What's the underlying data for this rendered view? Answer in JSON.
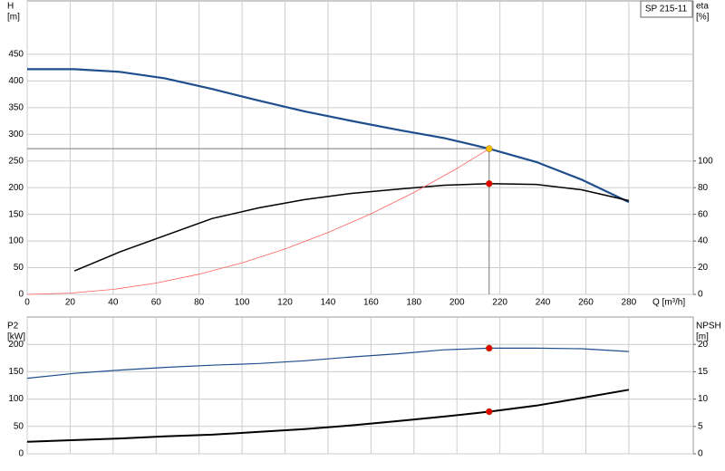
{
  "chart_data": [
    {
      "type": "line",
      "annotation": "SP 215-11",
      "ylabel": "H",
      "yunit": "[m]",
      "y2label": "eta",
      "y2unit": "[%]",
      "xlabel": "Q [m³/h]",
      "xlim": [
        0,
        310
      ],
      "xticks": [
        0,
        20,
        40,
        60,
        80,
        100,
        120,
        140,
        160,
        180,
        200,
        220,
        240,
        260,
        280
      ],
      "ylim": [
        0,
        550
      ],
      "yticks": [
        0,
        50,
        100,
        150,
        200,
        250,
        300,
        350,
        400,
        450
      ],
      "y2lim": [
        0,
        220
      ],
      "y2ticks": [
        0,
        20,
        40,
        60,
        80,
        100
      ],
      "grid": true,
      "series": [
        {
          "color": "#1f4e8c",
          "width": 2.2,
          "x": [
            0,
            22,
            43,
            64,
            86,
            108,
            129,
            151,
            173,
            194,
            215,
            237,
            258,
            280
          ],
          "values": [
            422,
            422,
            417,
            405,
            385,
            363,
            343,
            325,
            308,
            293,
            273,
            248,
            215,
            173
          ]
        },
        {
          "color": "#000000",
          "width": 1.5,
          "axis": "y2",
          "x": [
            22,
            43,
            64,
            86,
            108,
            129,
            151,
            173,
            194,
            215,
            237,
            258,
            280
          ],
          "values": [
            17.6,
            31.8,
            44,
            56.8,
            64.9,
            71,
            75.7,
            79,
            81.8,
            83,
            82.4,
            78.4,
            70.3
          ]
        },
        {
          "color": "#ff6060",
          "width": 0.8,
          "x": [
            0,
            20,
            40,
            60,
            80,
            100,
            120,
            140,
            160,
            180,
            200,
            215
          ],
          "values": [
            0,
            2.4,
            9.4,
            21.3,
            37.8,
            59,
            85,
            116,
            151,
            191,
            236,
            273
          ]
        }
      ],
      "markers": [
        {
          "x": 215,
          "y": 273,
          "color": "#f5c000"
        },
        {
          "x": 215,
          "y": 83,
          "axis": "y2",
          "color": "#e00000"
        }
      ]
    },
    {
      "type": "line",
      "ylabel": "P2",
      "yunit": "[kW]",
      "y2label": "NPSH",
      "y2unit": "[m]",
      "xlim": [
        0,
        310
      ],
      "ylim": [
        0,
        250
      ],
      "yticks": [
        0,
        50,
        100,
        150,
        200
      ],
      "y2lim": [
        0,
        25
      ],
      "y2ticks": [
        0,
        5,
        10,
        15,
        20
      ],
      "grid": true,
      "series": [
        {
          "color": "#1f4e8c",
          "width": 1.2,
          "x": [
            0,
            22,
            43,
            64,
            86,
            108,
            129,
            151,
            173,
            194,
            215,
            237,
            258,
            280
          ],
          "values": [
            138,
            147,
            153,
            158,
            162,
            165,
            170,
            177,
            183,
            190,
            193,
            193,
            192,
            187
          ]
        },
        {
          "color": "#000000",
          "width": 2,
          "axis": "y2",
          "x": [
            0,
            22,
            43,
            64,
            86,
            108,
            129,
            151,
            173,
            194,
            215,
            237,
            258,
            280
          ],
          "values": [
            2.2,
            2.5,
            2.8,
            3.2,
            3.5,
            4,
            4.5,
            5.2,
            6,
            6.8,
            7.7,
            8.8,
            10.2,
            11.7
          ]
        }
      ],
      "markers": [
        {
          "x": 215,
          "y": 193,
          "color": "#e00000"
        },
        {
          "x": 215,
          "y": 7.7,
          "axis": "y2",
          "color": "#e00000"
        }
      ]
    }
  ]
}
